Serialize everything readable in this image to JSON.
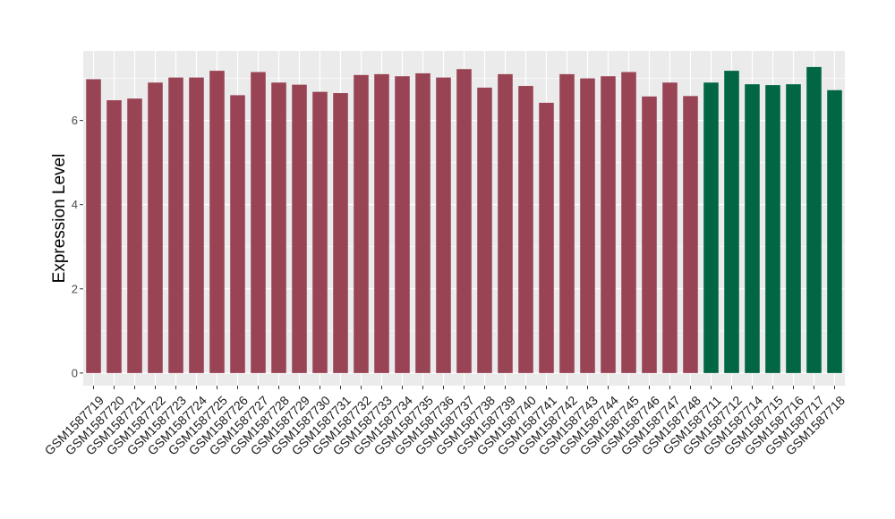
{
  "chart_data": {
    "type": "bar",
    "ylabel": "Expression Level",
    "xlabel": "",
    "title": "",
    "ylim": [
      -0.3,
      7.65
    ],
    "y_ticks": [
      0,
      2,
      4,
      6
    ],
    "grid": true,
    "legend": "none",
    "categories": [
      "GSM1587719",
      "GSM1587720",
      "GSM1587721",
      "GSM1587722",
      "GSM1587723",
      "GSM1587724",
      "GSM1587725",
      "GSM1587726",
      "GSM1587727",
      "GSM1587728",
      "GSM1587729",
      "GSM1587730",
      "GSM1587731",
      "GSM1587732",
      "GSM1587733",
      "GSM1587734",
      "GSM1587735",
      "GSM1587736",
      "GSM1587737",
      "GSM1587738",
      "GSM1587739",
      "GSM1587740",
      "GSM1587741",
      "GSM1587742",
      "GSM1587743",
      "GSM1587744",
      "GSM1587745",
      "GSM1587746",
      "GSM1587747",
      "GSM1587748",
      "GSM1587711",
      "GSM1587712",
      "GSM1587714",
      "GSM1587715",
      "GSM1587716",
      "GSM1587717",
      "GSM1587718"
    ],
    "values": [
      6.98,
      6.48,
      6.52,
      6.9,
      7.02,
      7.02,
      7.18,
      6.6,
      7.15,
      6.9,
      6.85,
      6.68,
      6.65,
      7.08,
      7.1,
      7.05,
      7.12,
      7.02,
      7.22,
      6.78,
      7.1,
      6.82,
      6.42,
      7.1,
      7.0,
      7.05,
      7.15,
      6.57,
      6.9,
      6.58,
      6.9,
      7.18,
      6.86,
      6.84,
      6.86,
      7.27,
      6.72
    ],
    "bar_colors": [
      "#994455",
      "#994455",
      "#994455",
      "#994455",
      "#994455",
      "#994455",
      "#994455",
      "#994455",
      "#994455",
      "#994455",
      "#994455",
      "#994455",
      "#994455",
      "#994455",
      "#994455",
      "#994455",
      "#994455",
      "#994455",
      "#994455",
      "#994455",
      "#994455",
      "#994455",
      "#994455",
      "#994455",
      "#994455",
      "#994455",
      "#994455",
      "#994455",
      "#994455",
      "#994455",
      "#006644",
      "#006644",
      "#006644",
      "#006644",
      "#006644",
      "#006644",
      "#006644"
    ],
    "panel_background": "#ebebeb",
    "grid_color": "#ffffff"
  }
}
